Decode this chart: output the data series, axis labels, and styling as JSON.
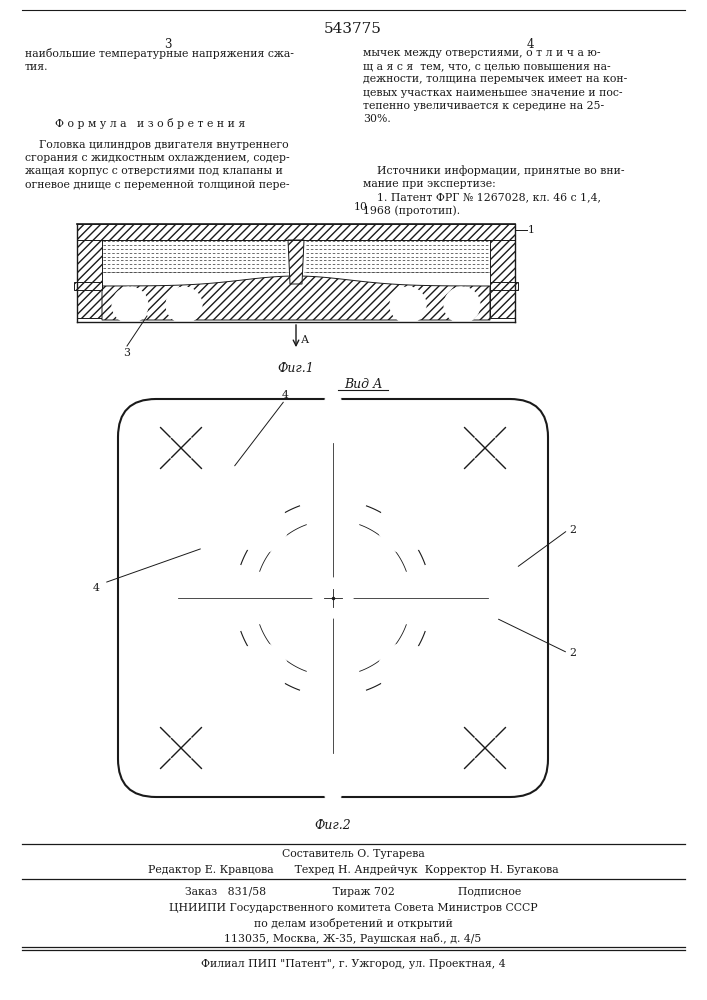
{
  "patent_number": "543775",
  "page_left": "3",
  "page_right": "4",
  "text_left_top": "наибольшие температурные напряжения сжа-\nтия.",
  "text_formula": "Ф о р м у л а   и з о б р е т е н и я",
  "text_body_left": "    Головка цилиндров двигателя внутреннего\nсгорания с жидкостным охлаждением, содер-\nжащая корпус с отверстиями под клапаны и\nогневое днище с переменной толщиной пере-",
  "text_right_top": "мычек между отверстиями, о т л и ч а ю-\nщ а я с я  тем, что, с целью повышения на-\nдежности, толщина перемычек имеет на кон-\nцевых участках наименьшее значение и пос-\nтепенно увеличивается к середине на 25-\n30%.",
  "text_sources": "    Источники информации, принятые во вни-\nмание при экспертизе:\n    1. Патент ФРГ № 1267028, кл. 46 с 1,4,\n1968 (прототип).",
  "fig1_label": "Фиг.1",
  "fig2_label": "Фиг.2",
  "vid_label": "Вид А",
  "arrow_label": "А",
  "label_1": "1",
  "label_2_top": "2",
  "label_2_bot": "2",
  "label_3": "3",
  "label_4_top": "4",
  "label_4_left": "4",
  "line_num": "10",
  "footer_line1": "Составитель О. Тугарева",
  "footer_line2": "Редактор Е. Кравцова      Техред Н. Андрейчук  Корректор Н. Бугакова",
  "footer_line3": "Заказ   831/58                   Тираж 702                  Подписное",
  "footer_line4": "ЦНИИПИ Государственного комитета Совета Министров СССР",
  "footer_line5": "по делам изобретений и открытий",
  "footer_line6": "113035, Москва, Ж-35, Раушская наб., д. 4/5",
  "footer_line7": "Филиал ПИП \"Патент\", г. Ужгород, ул. Проектная, 4",
  "bg_color": "#ffffff",
  "line_color": "#1a1a1a"
}
